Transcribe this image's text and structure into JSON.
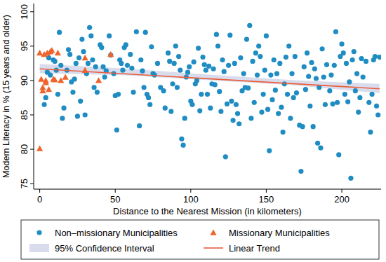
{
  "chart_data": {
    "type": "scatter",
    "x_label": "Distance to the Nearest Mission (in kilometers)",
    "y_label": "Modern Literacy in % (15 years and older)",
    "xlim": [
      -4,
      226
    ],
    "ylim": [
      74.2,
      101.2
    ],
    "xticks": [
      0,
      50,
      100,
      150,
      200
    ],
    "yticks": [
      75,
      80,
      85,
      90,
      95,
      100
    ],
    "grid": false,
    "legend": "bottom",
    "series": [
      {
        "name": "Non–missionary Municipalities",
        "type": "scatter",
        "marker": "circle",
        "color": "#1f8cc2",
        "x": [
          3,
          4,
          5,
          6,
          7,
          9,
          10,
          11,
          12,
          13,
          14,
          15,
          16,
          18,
          19,
          20,
          21,
          22,
          23,
          24,
          25,
          26,
          27,
          28,
          29,
          30,
          31,
          32,
          33,
          34,
          35,
          36,
          37,
          38,
          40,
          41,
          42,
          43,
          44,
          46,
          47,
          49,
          50,
          51,
          52,
          53,
          54,
          55,
          56,
          57,
          58,
          60,
          61,
          62,
          64,
          66,
          67,
          68,
          69,
          70,
          71,
          72,
          73,
          74,
          75,
          76,
          78,
          80,
          82,
          83,
          85,
          86,
          87,
          88,
          89,
          90,
          91,
          92,
          93,
          94,
          95,
          96,
          97,
          98,
          99,
          100,
          101,
          102,
          103,
          104,
          105,
          106,
          107,
          108,
          109,
          110,
          111,
          112,
          113,
          114,
          115,
          116,
          117,
          118,
          119,
          120,
          121,
          122,
          123,
          124,
          125,
          126,
          127,
          128,
          129,
          130,
          131,
          132,
          133,
          134,
          135,
          136,
          137,
          138,
          139,
          140,
          141,
          142,
          143,
          144,
          145,
          146,
          147,
          148,
          149,
          150,
          151,
          152,
          153,
          154,
          155,
          156,
          157,
          158,
          159,
          160,
          161,
          162,
          163,
          164,
          165,
          166,
          167,
          168,
          169,
          170,
          172,
          173,
          174,
          175,
          176,
          177,
          178,
          179,
          180,
          181,
          182,
          183,
          184,
          185,
          186,
          187,
          188,
          189,
          190,
          192,
          193,
          194,
          195,
          196,
          197,
          198,
          199,
          200,
          201,
          202,
          203,
          204,
          205,
          206,
          207,
          208,
          209,
          210,
          211,
          212,
          213,
          214,
          216,
          218,
          219,
          220,
          221,
          222,
          223,
          224,
          225
        ],
        "values": [
          86.5,
          87.5,
          91.2,
          93.3,
          90.8,
          93,
          92.8,
          91.5,
          88,
          97,
          92.2,
          84.5,
          86,
          91.5,
          94.5,
          93.8,
          89.8,
          88.3,
          90.2,
          92.5,
          84.8,
          93.3,
          87,
          96,
          94.2,
          85,
          91,
          92.5,
          97.7,
          96.5,
          93,
          89,
          92,
          88.3,
          95.2,
          94.8,
          92,
          90.5,
          91.4,
          96.5,
          93.7,
          91,
          87.8,
          82.8,
          88,
          93,
          92.5,
          91.5,
          94.8,
          95.2,
          92.2,
          93.8,
          91.8,
          88.3,
          97.1,
          83.4,
          93,
          91.4,
          89,
          97,
          88,
          87.5,
          86.5,
          94.9,
          91,
          90.8,
          92.5,
          89,
          88.5,
          86,
          94,
          92.8,
          85.5,
          89.5,
          92.5,
          95,
          89,
          93.5,
          91.5,
          81.5,
          80.6,
          84.5,
          90.5,
          91.2,
          92,
          87,
          86.5,
          92.7,
          89.5,
          90,
          94.7,
          85.6,
          88,
          93.4,
          92.3,
          91.5,
          88,
          92.1,
          86,
          89.5,
          91.7,
          89.4,
          96.7,
          95,
          88.4,
          85.5,
          93,
          91.3,
          78.9,
          86.6,
          92.2,
          96.6,
          87,
          84.2,
          92.5,
          86.5,
          85.2,
          83.7,
          93.3,
          88.5,
          91,
          89,
          96,
          88.9,
          98,
          84.5,
          92.8,
          86.8,
          94,
          90.8,
          95,
          93.5,
          85.4,
          88,
          91.5,
          96.5,
          85.8,
          79.8,
          90.8,
          87.2,
          93,
          88.6,
          91,
          85.2,
          92.5,
          86.1,
          82.5,
          89.5,
          93.4,
          88,
          95,
          84.5,
          91,
          87.5,
          93.5,
          88.2,
          83.5,
          76.8,
          83.3,
          92,
          88.7,
          94,
          90.6,
          86.3,
          92.6,
          83.3,
          91.7,
          90.3,
          80.9,
          89,
          80.2,
          94.6,
          90.5,
          86.5,
          92.3,
          88.5,
          90.8,
          86.6,
          92.2,
          97.1,
          86.8,
          79.2,
          93.5,
          95.3,
          94,
          88,
          92.5,
          86.9,
          89.8,
          75.8,
          93,
          94.2,
          88.5,
          91,
          85.4,
          87.5,
          93.2,
          90.5,
          92.8,
          86.8,
          82.5,
          88,
          93,
          93.5,
          86.3,
          85,
          93.4
        ]
      },
      {
        "name": "Missionary Municipalities",
        "type": "scatter",
        "marker": "triangle",
        "color": "#f0632a",
        "x": [
          0,
          0,
          1,
          2,
          2,
          3,
          4,
          4,
          5,
          6,
          7,
          8,
          9,
          10,
          12,
          14,
          17,
          30,
          30,
          39,
          47
        ],
        "values": [
          94,
          80.1,
          90.2,
          89,
          88.5,
          93.8,
          90,
          89.7,
          94,
          88.7,
          94.2,
          94.4,
          90.2,
          90.1,
          94,
          90,
          90.5,
          93.3,
          91.5,
          90,
          93.8
        ]
      },
      {
        "name": "95% Confidence Interval",
        "type": "area",
        "color": "#d9dcec",
        "x": [
          0,
          56,
          112,
          169,
          225
        ],
        "lower": [
          91.05,
          90.75,
          90.05,
          89.3,
          88.15
        ],
        "upper": [
          92.4,
          91.75,
          90.85,
          90.05,
          89.5
        ]
      },
      {
        "name": "Linear Trend",
        "type": "line",
        "line_style": "solid",
        "color": "#e8603c",
        "x": [
          0,
          225
        ],
        "values": [
          91.7,
          88.8
        ]
      }
    ]
  }
}
